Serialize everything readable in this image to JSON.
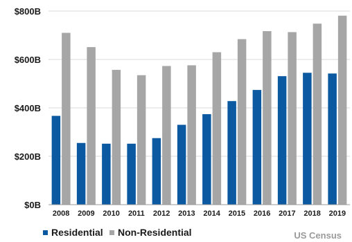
{
  "chart_data": {
    "type": "bar",
    "categories": [
      "2008",
      "2009",
      "2010",
      "2011",
      "2012",
      "2013",
      "2014",
      "2015",
      "2016",
      "2017",
      "2018",
      "2019"
    ],
    "series": [
      {
        "name": "Residential",
        "color": "#0b5aa1",
        "values": [
          367,
          255,
          252,
          252,
          275,
          330,
          374,
          428,
          474,
          531,
          545,
          542
        ]
      },
      {
        "name": "Non-Residential",
        "color": "#a6a6a6",
        "values": [
          710,
          651,
          557,
          535,
          573,
          576,
          630,
          684,
          717,
          713,
          748,
          781
        ]
      }
    ],
    "y_ticks": [
      {
        "value": 0,
        "label": "$0B"
      },
      {
        "value": 200,
        "label": "$200B"
      },
      {
        "value": 400,
        "label": "$400B"
      },
      {
        "value": 600,
        "label": "$600B"
      },
      {
        "value": 800,
        "label": "$800B"
      }
    ],
    "ylim": [
      0,
      800
    ],
    "grid": true,
    "legend_position": "bottom-left",
    "source": "US Census"
  }
}
